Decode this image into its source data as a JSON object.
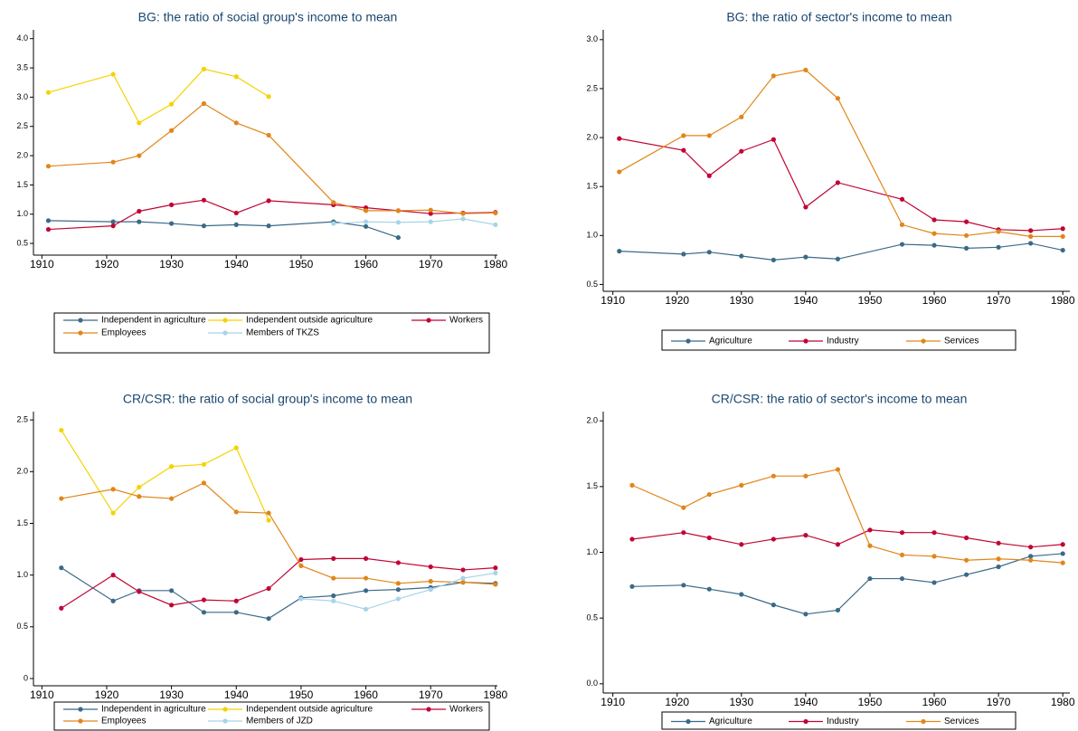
{
  "chart_data": [
    {
      "type": "line",
      "title": "BG: the ratio of social group's income to mean",
      "x": [
        1911,
        1921,
        1925,
        1930,
        1935,
        1940,
        1945,
        1955,
        1960,
        1965,
        1970,
        1975,
        1980
      ],
      "xlim": [
        1908.7,
        1980.3
      ],
      "xticks": [
        1910,
        1920,
        1930,
        1940,
        1950,
        1960,
        1970,
        1980
      ],
      "ylim": [
        0.3,
        4.15
      ],
      "yticks": [
        {
          "value": 0.5,
          "label": "0.5"
        },
        {
          "value": 1,
          "label": "1.0"
        },
        {
          "value": 1.5,
          "label": "1.5"
        },
        {
          "value": 2,
          "label": "2.0"
        },
        {
          "value": 2.5,
          "label": "2.5"
        },
        {
          "value": 3,
          "label": "3.0"
        },
        {
          "value": 3.5,
          "label": "3.5"
        },
        {
          "value": 4,
          "label": "4.0"
        }
      ],
      "series": [
        {
          "name": "Independent in agriculture",
          "color": "#3b6a88",
          "values": [
            0.89,
            0.87,
            0.87,
            0.84,
            0.8,
            0.82,
            0.8,
            0.87,
            0.79,
            0.6,
            null,
            null,
            null
          ]
        },
        {
          "name": "Independent outside agriculture",
          "color": "#f5d300",
          "values": [
            3.08,
            3.39,
            2.56,
            2.88,
            3.48,
            3.35,
            3.01,
            null,
            null,
            null,
            null,
            null,
            null
          ]
        },
        {
          "name": "Workers",
          "color": "#c10534",
          "values": [
            0.74,
            0.8,
            1.05,
            1.16,
            1.24,
            1.02,
            1.23,
            1.16,
            1.11,
            1.06,
            1.01,
            1.02,
            1.03
          ]
        },
        {
          "name": "Employees",
          "color": "#e1861a",
          "values": [
            1.82,
            1.89,
            2.0,
            2.43,
            2.89,
            2.56,
            2.35,
            1.2,
            1.06,
            1.06,
            1.07,
            1.01,
            1.02
          ]
        },
        {
          "name": "Members of TKZS",
          "color": "#a8d4e8",
          "values": [
            null,
            null,
            null,
            null,
            null,
            null,
            null,
            0.84,
            0.87,
            0.86,
            0.87,
            0.92,
            0.82
          ]
        }
      ]
    },
    {
      "type": "line",
      "title": "BG: the ratio of sector's income to mean",
      "x": [
        1911,
        1921,
        1925,
        1930,
        1935,
        1940,
        1945,
        1955,
        1960,
        1965,
        1970,
        1975,
        1980
      ],
      "xlim": [
        1908.5,
        1981.1
      ],
      "xticks": [
        1910,
        1920,
        1930,
        1940,
        1950,
        1960,
        1970,
        1980
      ],
      "ylim": [
        0.43,
        3.1
      ],
      "yticks": [
        {
          "value": 0.5,
          "label": "0.5"
        },
        {
          "value": 1,
          "label": "1.0"
        },
        {
          "value": 1.5,
          "label": "1.5"
        },
        {
          "value": 2,
          "label": "2.0"
        },
        {
          "value": 2.5,
          "label": "2.5"
        },
        {
          "value": 3,
          "label": "3.0"
        }
      ],
      "series": [
        {
          "name": "Agriculture",
          "color": "#3b6a88",
          "values": [
            0.84,
            0.81,
            0.83,
            0.79,
            0.75,
            0.78,
            0.76,
            0.91,
            0.9,
            0.87,
            0.88,
            0.92,
            0.85
          ]
        },
        {
          "name": "Industry",
          "color": "#c10534",
          "values": [
            1.99,
            1.87,
            1.61,
            1.86,
            1.98,
            1.29,
            1.54,
            1.37,
            1.16,
            1.14,
            1.06,
            1.05,
            1.07
          ]
        },
        {
          "name": "Services",
          "color": "#e1861a",
          "values": [
            1.65,
            2.02,
            2.02,
            2.21,
            2.63,
            2.69,
            2.4,
            1.11,
            1.02,
            1.0,
            1.04,
            0.99,
            0.99
          ]
        }
      ]
    },
    {
      "type": "line",
      "title": "CR/CSR: the ratio of social group's income to mean",
      "x": [
        1913,
        1921,
        1925,
        1930,
        1935,
        1940,
        1945,
        1950,
        1955,
        1960,
        1965,
        1970,
        1975,
        1980
      ],
      "xlim": [
        1908.7,
        1980.3
      ],
      "xticks": [
        1910,
        1920,
        1930,
        1940,
        1950,
        1960,
        1970,
        1980
      ],
      "ylim": [
        -0.07,
        2.58
      ],
      "yticks": [
        0,
        {
          "value": 0.5,
          "label": "0.5"
        },
        {
          "value": 1,
          "label": "1.0"
        },
        {
          "value": 1.5,
          "label": "1.5"
        },
        {
          "value": 2,
          "label": "2.0"
        },
        {
          "value": 2.5,
          "label": "2.5"
        }
      ],
      "series": [
        {
          "name": "Independent in agriculture",
          "color": "#3b6a88",
          "values": [
            1.07,
            0.75,
            0.85,
            0.85,
            0.64,
            0.64,
            0.58,
            0.78,
            0.8,
            0.85,
            0.86,
            0.88,
            0.93,
            0.92
          ]
        },
        {
          "name": "Independent outside agriculture",
          "color": "#f5d300",
          "values": [
            2.4,
            1.6,
            1.85,
            2.05,
            2.07,
            2.23,
            1.53,
            null,
            null,
            null,
            null,
            null,
            null,
            null
          ]
        },
        {
          "name": "Workers",
          "color": "#c10534",
          "values": [
            0.68,
            1.0,
            0.84,
            0.71,
            0.76,
            0.75,
            0.87,
            1.15,
            1.16,
            1.16,
            1.12,
            1.08,
            1.05,
            1.07
          ]
        },
        {
          "name": "Employees",
          "color": "#e1861a",
          "values": [
            1.74,
            1.83,
            1.76,
            1.74,
            1.89,
            1.61,
            1.6,
            1.09,
            0.97,
            0.97,
            0.92,
            0.94,
            0.93,
            0.91
          ]
        },
        {
          "name": "Members of JZD",
          "color": "#a8d4e8",
          "values": [
            null,
            null,
            null,
            null,
            null,
            null,
            null,
            0.77,
            0.75,
            0.67,
            0.77,
            0.86,
            0.97,
            1.02
          ]
        }
      ]
    },
    {
      "type": "line",
      "title": "CR/CSR: the ratio of sector's income to mean",
      "x": [
        1913,
        1921,
        1925,
        1930,
        1935,
        1940,
        1945,
        1950,
        1955,
        1960,
        1965,
        1970,
        1975,
        1980
      ],
      "xlim": [
        1908.5,
        1981.1
      ],
      "xticks": [
        1910,
        1920,
        1930,
        1940,
        1950,
        1960,
        1970,
        1980
      ],
      "ylim": [
        -0.07,
        2.07
      ],
      "yticks": [
        {
          "value": 0,
          "label": "0.0"
        },
        {
          "value": 0.5,
          "label": "0.5"
        },
        {
          "value": 1,
          "label": "1.0"
        },
        {
          "value": 1.5,
          "label": "1.5"
        },
        {
          "value": 2,
          "label": "2.0"
        }
      ],
      "series": [
        {
          "name": "Agriculture",
          "color": "#3b6a88",
          "values": [
            0.74,
            0.75,
            0.72,
            0.68,
            0.6,
            0.53,
            0.56,
            0.8,
            0.8,
            0.77,
            0.83,
            0.89,
            0.97,
            0.99
          ]
        },
        {
          "name": "Industry",
          "color": "#c10534",
          "values": [
            1.1,
            1.15,
            1.11,
            1.06,
            1.1,
            1.13,
            1.06,
            1.17,
            1.15,
            1.15,
            1.11,
            1.07,
            1.04,
            1.06
          ]
        },
        {
          "name": "Services",
          "color": "#e1861a",
          "values": [
            1.51,
            1.34,
            1.44,
            1.51,
            1.58,
            1.58,
            1.63,
            1.05,
            0.98,
            0.97,
            0.94,
            0.95,
            0.94,
            0.92
          ]
        }
      ]
    }
  ]
}
